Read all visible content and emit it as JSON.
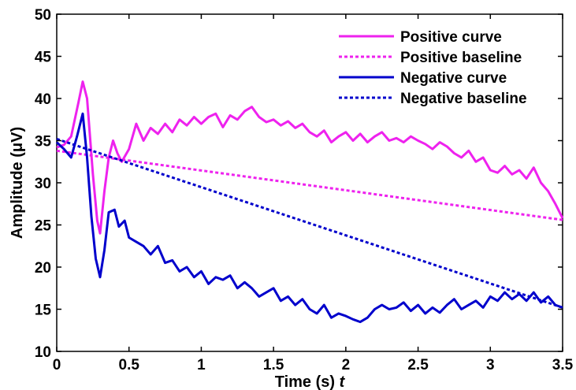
{
  "chart_data": {
    "type": "line",
    "xlabel": "Time (s) t",
    "ylabel": "Amplitude (μV)",
    "xlim": [
      0,
      3.5
    ],
    "ylim": [
      10,
      50
    ],
    "xticks": [
      0,
      0.5,
      1,
      1.5,
      2,
      2.5,
      3,
      3.5
    ],
    "xtick_labels": [
      "0",
      "0.5",
      "1",
      "1.5",
      "2",
      "2.5",
      "3",
      "3.5"
    ],
    "yticks": [
      10,
      15,
      20,
      25,
      30,
      35,
      40,
      45,
      50
    ],
    "ytick_labels": [
      "10",
      "15",
      "20",
      "25",
      "30",
      "35",
      "40",
      "45",
      "50"
    ],
    "grid": false,
    "legend_position": "top-right",
    "series": [
      {
        "name": "Positive curve",
        "color": "#ee22ee",
        "style": "solid",
        "x": [
          0,
          0.05,
          0.1,
          0.15,
          0.18,
          0.21,
          0.25,
          0.28,
          0.3,
          0.33,
          0.36,
          0.39,
          0.42,
          0.45,
          0.5,
          0.55,
          0.6,
          0.65,
          0.7,
          0.75,
          0.8,
          0.85,
          0.9,
          0.95,
          1.0,
          1.05,
          1.1,
          1.15,
          1.2,
          1.25,
          1.3,
          1.35,
          1.4,
          1.45,
          1.5,
          1.55,
          1.6,
          1.65,
          1.7,
          1.75,
          1.8,
          1.85,
          1.9,
          1.95,
          2.0,
          2.05,
          2.1,
          2.15,
          2.2,
          2.25,
          2.3,
          2.35,
          2.4,
          2.45,
          2.5,
          2.55,
          2.6,
          2.65,
          2.7,
          2.75,
          2.8,
          2.85,
          2.9,
          2.95,
          3.0,
          3.05,
          3.1,
          3.15,
          3.2,
          3.25,
          3.3,
          3.35,
          3.4,
          3.45,
          3.5
        ],
        "y": [
          34.2,
          34.5,
          35.5,
          39.5,
          42.0,
          40.0,
          31.0,
          25.5,
          24.0,
          29.0,
          33.0,
          35.0,
          33.5,
          32.5,
          34.0,
          37.0,
          35.0,
          36.5,
          35.8,
          37.0,
          36.0,
          37.5,
          36.8,
          37.8,
          37.0,
          37.8,
          38.2,
          36.6,
          38.0,
          37.5,
          38.5,
          39.0,
          37.8,
          37.2,
          37.5,
          36.8,
          37.3,
          36.5,
          37.0,
          36.0,
          35.5,
          36.2,
          34.8,
          35.5,
          36.0,
          35.0,
          35.8,
          34.8,
          35.5,
          36.0,
          35.0,
          35.3,
          34.8,
          35.5,
          35.0,
          34.6,
          34.0,
          34.8,
          34.3,
          33.5,
          33.0,
          33.8,
          32.5,
          33.0,
          31.5,
          31.2,
          32.0,
          31.0,
          31.5,
          30.5,
          31.8,
          30.0,
          29.0,
          27.5,
          25.8
        ]
      },
      {
        "name": "Positive baseline",
        "color": "#ee22ee",
        "style": "dotted",
        "x": [
          0,
          3.5
        ],
        "y": [
          33.8,
          25.6
        ]
      },
      {
        "name": "Negative curve",
        "color": "#0000cc",
        "style": "solid",
        "x": [
          0,
          0.05,
          0.1,
          0.14,
          0.18,
          0.21,
          0.24,
          0.27,
          0.3,
          0.33,
          0.36,
          0.4,
          0.43,
          0.47,
          0.5,
          0.55,
          0.6,
          0.65,
          0.7,
          0.75,
          0.8,
          0.85,
          0.9,
          0.95,
          1.0,
          1.05,
          1.1,
          1.15,
          1.2,
          1.25,
          1.3,
          1.35,
          1.4,
          1.45,
          1.5,
          1.55,
          1.6,
          1.65,
          1.7,
          1.75,
          1.8,
          1.85,
          1.9,
          1.95,
          2.0,
          2.05,
          2.1,
          2.15,
          2.2,
          2.25,
          2.3,
          2.35,
          2.4,
          2.45,
          2.5,
          2.55,
          2.6,
          2.65,
          2.7,
          2.75,
          2.8,
          2.85,
          2.9,
          2.95,
          3.0,
          3.05,
          3.1,
          3.15,
          3.2,
          3.25,
          3.3,
          3.35,
          3.4,
          3.45,
          3.5
        ],
        "y": [
          34.8,
          34.0,
          33.0,
          35.5,
          38.2,
          33.0,
          26.0,
          21.0,
          18.8,
          22.0,
          26.5,
          26.8,
          24.8,
          25.5,
          23.5,
          23.0,
          22.5,
          21.5,
          22.5,
          20.5,
          20.8,
          19.5,
          20.0,
          18.8,
          19.5,
          18.0,
          18.8,
          18.5,
          19.0,
          17.5,
          18.2,
          17.5,
          16.5,
          17.0,
          17.5,
          16.0,
          16.5,
          15.5,
          16.2,
          15.0,
          14.5,
          15.5,
          14.0,
          14.5,
          14.2,
          13.8,
          13.5,
          14.0,
          15.0,
          15.5,
          15.0,
          15.2,
          15.8,
          14.8,
          15.5,
          14.5,
          15.2,
          14.6,
          15.5,
          16.2,
          15.0,
          15.5,
          16.0,
          15.2,
          16.5,
          16.0,
          17.0,
          16.2,
          16.8,
          16.0,
          17.0,
          15.8,
          16.5,
          15.5,
          15.2
        ]
      },
      {
        "name": "Negative baseline",
        "color": "#0000cc",
        "style": "dotted",
        "x": [
          0,
          3.5
        ],
        "y": [
          35.2,
          15.2
        ]
      }
    ]
  }
}
